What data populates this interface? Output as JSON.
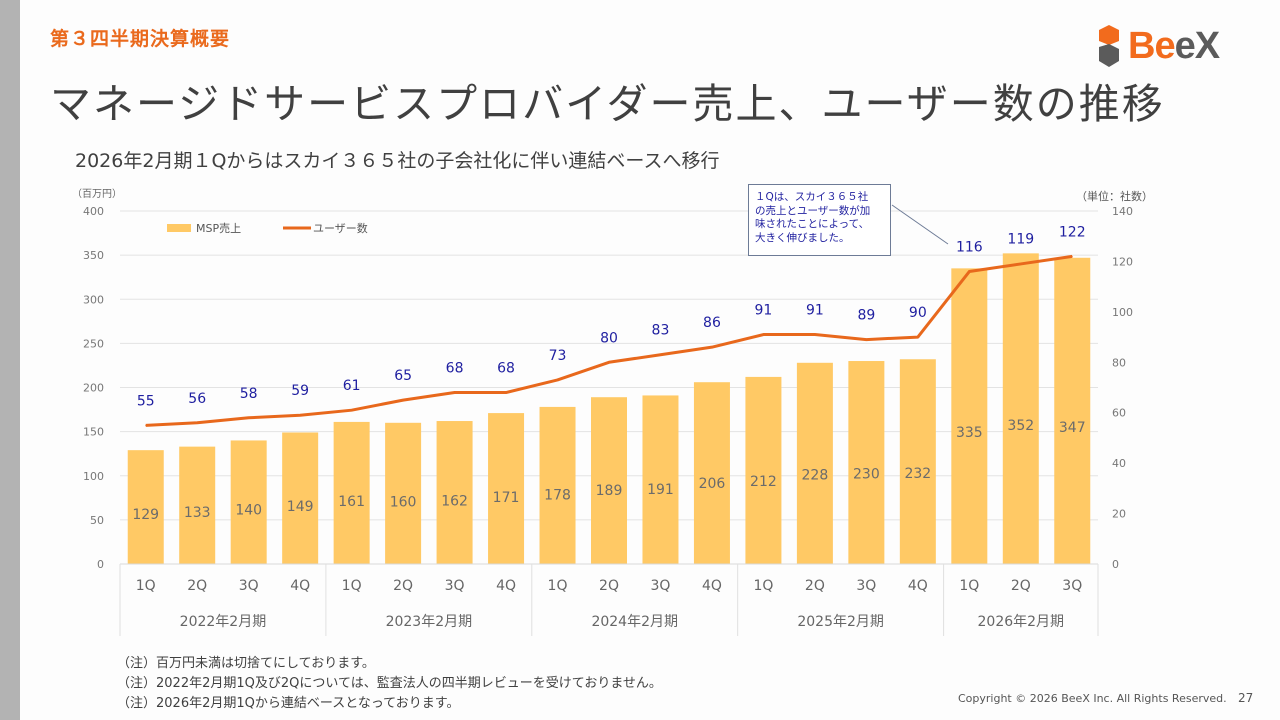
{
  "header": {
    "section_label": "第３四半期決算概要",
    "title": "マネージドサービスプロバイダー売上、ユーザー数の推移",
    "subtitle": "2026年2月期１Qからはスカイ３６５社の子会社化に伴い連結ベースへ移行",
    "logo": {
      "text_orange": "Be",
      "text_gray_e": "e",
      "text_gray_x": "X",
      "icon": "beex-logo-icon"
    }
  },
  "colors": {
    "accent": "#ea6a1d",
    "bar": "#ffc965",
    "line": "#e8681c",
    "line_label": "#1f1fa0",
    "bar_label": "#6b6b6b"
  },
  "chart_data": {
    "type": "bar",
    "title": "",
    "left_axis_unit": "（百万円）",
    "right_axis_unit": "（単位：社数）",
    "left_ylim": [
      0,
      400
    ],
    "left_ticks": [
      0,
      50,
      100,
      150,
      200,
      250,
      300,
      350,
      400
    ],
    "right_ylim": [
      0,
      140
    ],
    "right_ticks": [
      0,
      20,
      40,
      60,
      80,
      100,
      120,
      140
    ],
    "grid": true,
    "legend_placement": "top-left",
    "categories": [
      "1Q",
      "2Q",
      "3Q",
      "4Q",
      "1Q",
      "2Q",
      "3Q",
      "4Q",
      "1Q",
      "2Q",
      "3Q",
      "4Q",
      "1Q",
      "2Q",
      "3Q",
      "4Q",
      "1Q",
      "2Q",
      "3Q"
    ],
    "groups": [
      {
        "label": "2022年2月期",
        "count": 4
      },
      {
        "label": "2023年2月期",
        "count": 4
      },
      {
        "label": "2024年2月期",
        "count": 4
      },
      {
        "label": "2025年2月期",
        "count": 4
      },
      {
        "label": "2026年2月期",
        "count": 3
      }
    ],
    "series": [
      {
        "name": "MSP売上",
        "type": "bar",
        "axis": "left",
        "values": [
          129,
          133,
          140,
          149,
          161,
          160,
          162,
          171,
          178,
          189,
          191,
          206,
          212,
          228,
          230,
          232,
          335,
          352,
          347
        ]
      },
      {
        "name": "ユーザー数",
        "type": "line",
        "axis": "right",
        "values": [
          55,
          56,
          58,
          59,
          61,
          65,
          68,
          68,
          73,
          80,
          83,
          86,
          91,
          91,
          89,
          90,
          116,
          119,
          122
        ]
      }
    ],
    "annotation": "１Qは、スカイ３６５社の売上とユーザー数が加味されたことによって、大きく伸びました。"
  },
  "callout": {
    "lines": [
      "１Qは、スカイ３６５社",
      "の売上とユーザー数が加",
      "味されたことによって、",
      "大きく伸びました。"
    ]
  },
  "notes": [
    "（注）百万円未満は切捨てにしております。",
    "（注）2022年2月期1Q及び2Qについては、監査法人の四半期レビューを受けておりません。",
    "（注）2026年2月期1Qから連結ベースとなっております。"
  ],
  "footer": {
    "copyright": "Copyright © 2026 BeeX Inc. All Rights Reserved.",
    "page_number": "27"
  }
}
